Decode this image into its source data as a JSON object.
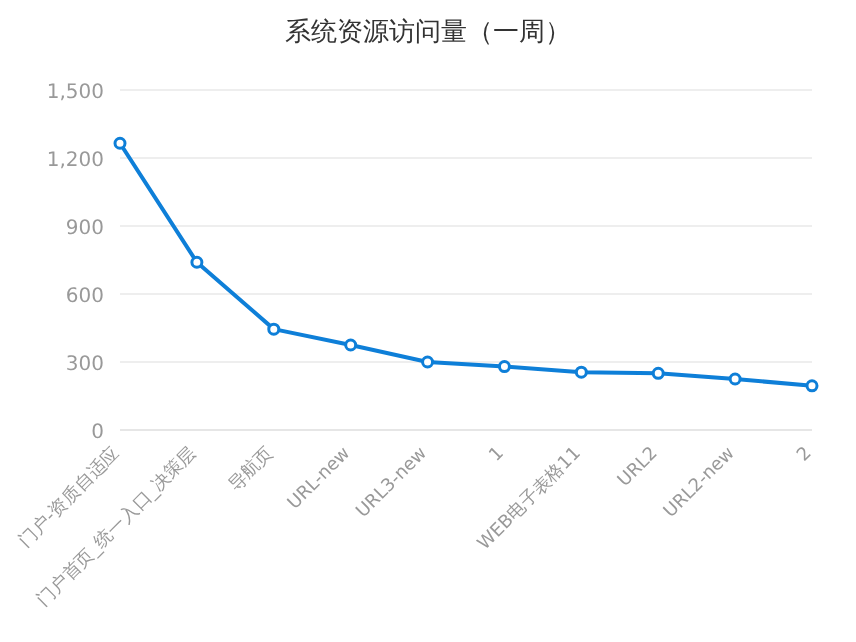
{
  "chart_data": {
    "type": "line",
    "title": "系统资源访问量（一周）",
    "categories": [
      "门户-资质自适应",
      "门户首页_统一入口_决策层",
      "导航页",
      "URL-new",
      "URL3-new",
      "1",
      "WEB电子表格11",
      "URL2",
      "URL2-new",
      "2"
    ],
    "series": [
      {
        "color": "#0e7fd8",
        "values": [
          1265,
          740,
          445,
          375,
          300,
          280,
          255,
          250,
          225,
          195
        ]
      }
    ],
    "ylim": [
      0,
      1500
    ],
    "yticks": [
      0,
      {
        "value": 300,
        "label": "300"
      },
      {
        "value": 600,
        "label": "600"
      },
      {
        "value": 900,
        "label": "900"
      },
      {
        "value": 1200,
        "label": "1,200"
      },
      {
        "value": 1500,
        "label": "1,500"
      }
    ],
    "grid": "y",
    "marker": "circle",
    "line_style": "solid"
  }
}
